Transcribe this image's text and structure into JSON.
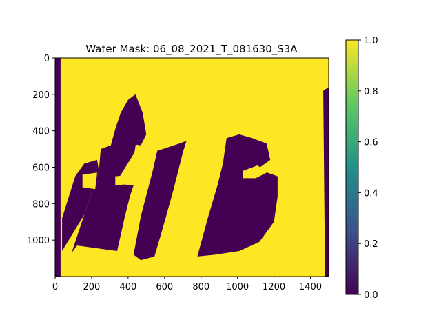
{
  "chart_data": {
    "type": "heatmap",
    "title": "Water Mask: 06_08_2021_T_081630_S3A",
    "xlabel": "",
    "ylabel": "",
    "xlim": [
      0,
      1500
    ],
    "ylim": [
      1200,
      0
    ],
    "x_ticks": [
      0,
      200,
      400,
      600,
      800,
      1000,
      1200,
      1400
    ],
    "y_ticks": [
      0,
      200,
      400,
      600,
      800,
      1000
    ],
    "x_tick_labels": [
      "0",
      "200",
      "400",
      "600",
      "800",
      "1000",
      "1200",
      "1400"
    ],
    "y_tick_labels": [
      "0",
      "200",
      "400",
      "600",
      "800",
      "1000"
    ],
    "colormap": "viridis",
    "colormap_stops": [
      "#440154",
      "#3b528b",
      "#21918c",
      "#5ec962",
      "#fde725"
    ],
    "value_range": [
      0.0,
      1.0
    ],
    "colorbar": {
      "ticks": [
        0.0,
        0.2,
        0.4,
        0.6,
        0.8,
        1.0
      ],
      "tick_labels": [
        "0.0",
        "0.2",
        "0.4",
        "0.6",
        "0.8",
        "1.0"
      ]
    },
    "grid": false,
    "background_value": 1.0,
    "regions_value_0": [
      {
        "name": "left-edge-strip",
        "points": [
          [
            0,
            0
          ],
          [
            30,
            0
          ],
          [
            30,
            1200
          ],
          [
            0,
            1200
          ]
        ]
      },
      {
        "name": "right-edge-strip",
        "points": [
          [
            1470,
            180
          ],
          [
            1500,
            160
          ],
          [
            1500,
            1200
          ],
          [
            1480,
            1200
          ]
        ]
      },
      {
        "name": "left-swath-band",
        "points": [
          [
            38,
            880
          ],
          [
            110,
            650
          ],
          [
            160,
            580
          ],
          [
            230,
            560
          ],
          [
            240,
            620
          ],
          [
            160,
            860
          ],
          [
            38,
            1060
          ]
        ]
      },
      {
        "name": "swath-1",
        "points": [
          [
            90,
            1070
          ],
          [
            170,
            830
          ],
          [
            240,
            620
          ],
          [
            250,
            500
          ],
          [
            330,
            470
          ],
          [
            400,
            460
          ],
          [
            445,
            455
          ],
          [
            435,
            520
          ],
          [
            330,
            690
          ],
          [
            430,
            700
          ],
          [
            410,
            760
          ],
          [
            380,
            880
          ],
          [
            340,
            1060
          ],
          [
            120,
            1030
          ]
        ]
      },
      {
        "name": "swath-2",
        "points": [
          [
            430,
            1080
          ],
          [
            470,
            870
          ],
          [
            535,
            620
          ],
          [
            560,
            510
          ],
          [
            680,
            470
          ],
          [
            720,
            455
          ],
          [
            700,
            520
          ],
          [
            650,
            720
          ],
          [
            600,
            900
          ],
          [
            545,
            1090
          ],
          [
            470,
            1110
          ]
        ]
      },
      {
        "name": "swath-3",
        "points": [
          [
            780,
            1090
          ],
          [
            840,
            870
          ],
          [
            890,
            700
          ],
          [
            920,
            580
          ],
          [
            940,
            440
          ],
          [
            1010,
            420
          ],
          [
            1080,
            440
          ],
          [
            1160,
            470
          ],
          [
            1180,
            560
          ],
          [
            1110,
            610
          ],
          [
            1220,
            650
          ],
          [
            1220,
            760
          ],
          [
            1200,
            900
          ],
          [
            1120,
            1010
          ],
          [
            1010,
            1060
          ],
          [
            880,
            1080
          ]
        ]
      },
      {
        "name": "northern-inlet",
        "points": [
          [
            300,
            500
          ],
          [
            330,
            390
          ],
          [
            360,
            300
          ],
          [
            400,
            230
          ],
          [
            440,
            200
          ],
          [
            480,
            300
          ],
          [
            500,
            420
          ],
          [
            470,
            480
          ],
          [
            400,
            470
          ],
          [
            330,
            470
          ]
        ]
      }
    ],
    "regions_value_1": [
      {
        "name": "inner-lake-left",
        "points": [
          [
            150,
            640
          ],
          [
            230,
            630
          ],
          [
            220,
            720
          ],
          [
            150,
            710
          ]
        ]
      },
      {
        "name": "inner-lake-mid",
        "points": [
          [
            330,
            650
          ],
          [
            420,
            640
          ],
          [
            430,
            690
          ],
          [
            330,
            700
          ]
        ]
      },
      {
        "name": "inner-lake-right",
        "points": [
          [
            1030,
            620
          ],
          [
            1110,
            590
          ],
          [
            1160,
            630
          ],
          [
            1100,
            660
          ],
          [
            1030,
            660
          ]
        ]
      }
    ]
  }
}
